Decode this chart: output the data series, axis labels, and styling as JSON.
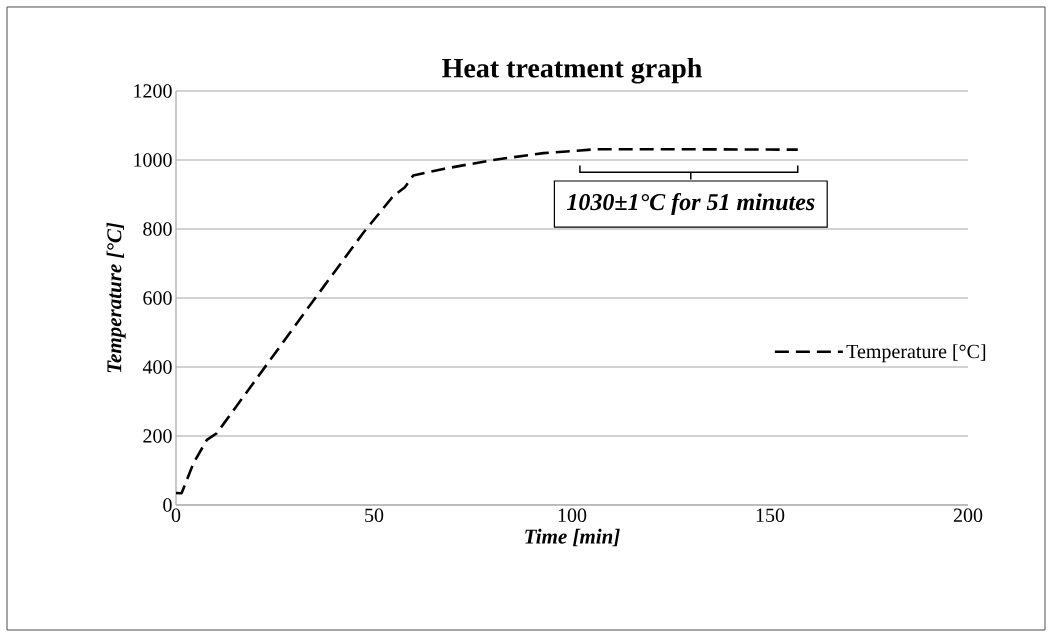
{
  "chart_data": {
    "type": "line",
    "title": "Heat treatment graph",
    "xlabel": "Time [min]",
    "ylabel": "Temperature [°C]",
    "x": [
      0,
      1.4,
      4.4,
      7.8,
      10.3,
      19.5,
      33,
      47.3,
      54.9,
      57.8,
      59.9,
      67.5,
      80,
      92.8,
      106,
      130,
      157
    ],
    "series": [
      {
        "name": "Temperature [°C]",
        "color": "#000000",
        "values": [
          35,
          34,
          121,
          189,
          208,
          353,
          566,
          789,
          896,
          921,
          955,
          974,
          1000,
          1020,
          1031,
          1031,
          1030
        ]
      }
    ],
    "xlim": [
      0,
      200
    ],
    "ylim": [
      0,
      1200
    ],
    "xticks": [
      0,
      50,
      100,
      150,
      200
    ],
    "yticks": [
      0,
      200,
      400,
      600,
      800,
      1000,
      1200
    ],
    "grid": "y",
    "legend": "right",
    "line_style": "dashed",
    "marker": "none",
    "annotations": [
      "1030±1°C for 51 minutes"
    ]
  }
}
